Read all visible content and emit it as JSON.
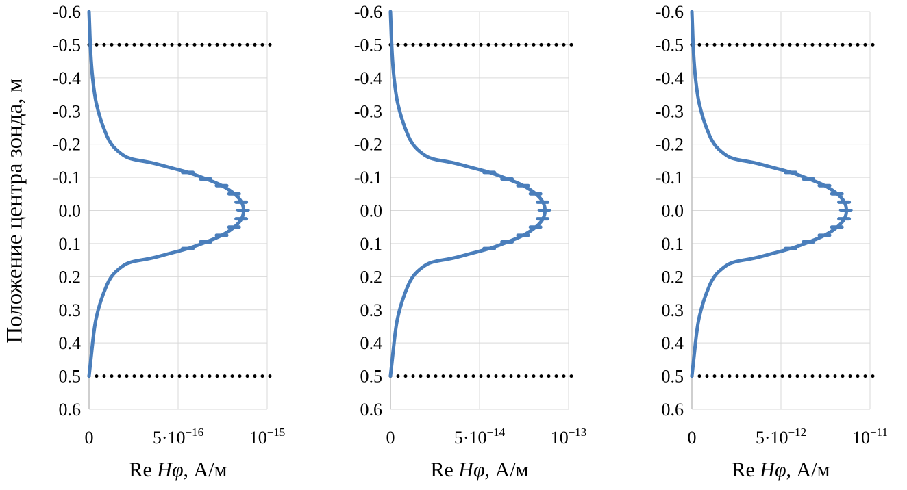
{
  "y_axis_title": "Положение центра зонда, м",
  "x_axis_title": {
    "prefix": "Re ",
    "symbol": "Hφ",
    "unit": ", А/м"
  },
  "chart_data": [
    {
      "type": "line",
      "y_ticks": [
        "-0.6",
        "-0.5",
        "-0.4",
        "-0.3",
        "-0.2",
        "-0.1",
        "0.0",
        "0.1",
        "0.2",
        "0.3",
        "0.4",
        "0.5",
        "0.6"
      ],
      "ylim": [
        -0.6,
        0.6
      ],
      "y_inverted": true,
      "x_ticks": [
        {
          "mant": "0",
          "exp": ""
        },
        {
          "mant": "5·10",
          "exp": "−16"
        },
        {
          "mant": "10",
          "exp": "−15"
        }
      ],
      "xlim": [
        0,
        1e-15
      ],
      "reference_lines_y": [
        -0.5,
        0.5
      ],
      "grid": true,
      "series": [
        {
          "color": "#4A7EBB",
          "x": [
            0,
            1e-17,
            3e-17,
            5e-17,
            8e-17,
            1.2e-16,
            1.8e-16,
            2.3e-16,
            3.5e-16,
            4.5e-16,
            5.6e-16,
            6.6e-16,
            7.5e-16,
            8.2e-16,
            8.6e-16,
            8.7e-16,
            8.6e-16,
            8.2e-16,
            7.5e-16,
            6.6e-16,
            5.6e-16,
            4.5e-16,
            3.5e-16,
            2.3e-16,
            1.8e-16,
            1.2e-16,
            8e-17,
            5e-17,
            3e-17,
            1e-17,
            0
          ],
          "y": [
            -0.6,
            -0.45,
            -0.35,
            -0.3,
            -0.25,
            -0.2,
            -0.17,
            -0.155,
            -0.145,
            -0.13,
            -0.115,
            -0.095,
            -0.075,
            -0.05,
            -0.025,
            0.0,
            0.025,
            0.05,
            0.075,
            0.095,
            0.115,
            0.13,
            0.145,
            0.155,
            0.17,
            0.2,
            0.25,
            0.3,
            0.35,
            0.45,
            0.5
          ]
        }
      ]
    },
    {
      "type": "line",
      "y_ticks": [
        "-0.6",
        "-0.5",
        "-0.4",
        "-0.3",
        "-0.2",
        "-0.1",
        "0.0",
        "0.1",
        "0.2",
        "0.3",
        "0.4",
        "0.5",
        "0.6"
      ],
      "ylim": [
        -0.6,
        0.6
      ],
      "y_inverted": true,
      "x_ticks": [
        {
          "mant": "0",
          "exp": ""
        },
        {
          "mant": "5·10",
          "exp": "−14"
        },
        {
          "mant": "10",
          "exp": "−13"
        }
      ],
      "xlim": [
        0,
        1e-13
      ],
      "reference_lines_y": [
        -0.5,
        0.5
      ],
      "grid": true,
      "series": [
        {
          "color": "#4A7EBB",
          "x": [
            0,
            1e-15,
            3e-15,
            5e-15,
            8e-15,
            1.2e-14,
            1.8e-14,
            2.3e-14,
            3.5e-14,
            4.5e-14,
            5.6e-14,
            6.6e-14,
            7.5e-14,
            8.2e-14,
            8.6e-14,
            8.7e-14,
            8.6e-14,
            8.2e-14,
            7.5e-14,
            6.6e-14,
            5.6e-14,
            4.5e-14,
            3.5e-14,
            2.3e-14,
            1.8e-14,
            1.2e-14,
            8e-15,
            5e-15,
            3e-15,
            1e-15,
            0
          ],
          "y": [
            -0.6,
            -0.45,
            -0.35,
            -0.3,
            -0.25,
            -0.2,
            -0.17,
            -0.155,
            -0.145,
            -0.13,
            -0.115,
            -0.095,
            -0.075,
            -0.05,
            -0.025,
            0.0,
            0.025,
            0.05,
            0.075,
            0.095,
            0.115,
            0.13,
            0.145,
            0.155,
            0.17,
            0.2,
            0.25,
            0.3,
            0.35,
            0.45,
            0.5
          ]
        }
      ]
    },
    {
      "type": "line",
      "y_ticks": [
        "-0.6",
        "-0.5",
        "-0.4",
        "-0.3",
        "-0.2",
        "-0.1",
        "0.0",
        "0.1",
        "0.2",
        "0.3",
        "0.4",
        "0.5",
        "0.6"
      ],
      "ylim": [
        -0.6,
        0.6
      ],
      "y_inverted": true,
      "x_ticks": [
        {
          "mant": "0",
          "exp": ""
        },
        {
          "mant": "5·10",
          "exp": "−12"
        },
        {
          "mant": "10",
          "exp": "−11"
        }
      ],
      "xlim": [
        0,
        1e-11
      ],
      "reference_lines_y": [
        -0.5,
        0.5
      ],
      "grid": true,
      "series": [
        {
          "color": "#4A7EBB",
          "x": [
            0,
            1e-13,
            3e-13,
            5e-13,
            8e-13,
            1.2e-12,
            1.8e-12,
            2.3e-12,
            3.5e-12,
            4.5e-12,
            5.6e-12,
            6.6e-12,
            7.5e-12,
            8.2e-12,
            8.6e-12,
            8.7e-12,
            8.6e-12,
            8.2e-12,
            7.5e-12,
            6.6e-12,
            5.6e-12,
            4.5e-12,
            3.5e-12,
            2.3e-12,
            1.8e-12,
            1.2e-12,
            8e-13,
            5e-13,
            3e-13,
            1e-13,
            0
          ],
          "y": [
            -0.6,
            -0.45,
            -0.35,
            -0.3,
            -0.25,
            -0.2,
            -0.17,
            -0.155,
            -0.145,
            -0.13,
            -0.115,
            -0.095,
            -0.075,
            -0.05,
            -0.025,
            0.0,
            0.025,
            0.05,
            0.075,
            0.095,
            0.115,
            0.13,
            0.145,
            0.155,
            0.17,
            0.2,
            0.25,
            0.3,
            0.35,
            0.45,
            0.5
          ]
        }
      ]
    }
  ]
}
